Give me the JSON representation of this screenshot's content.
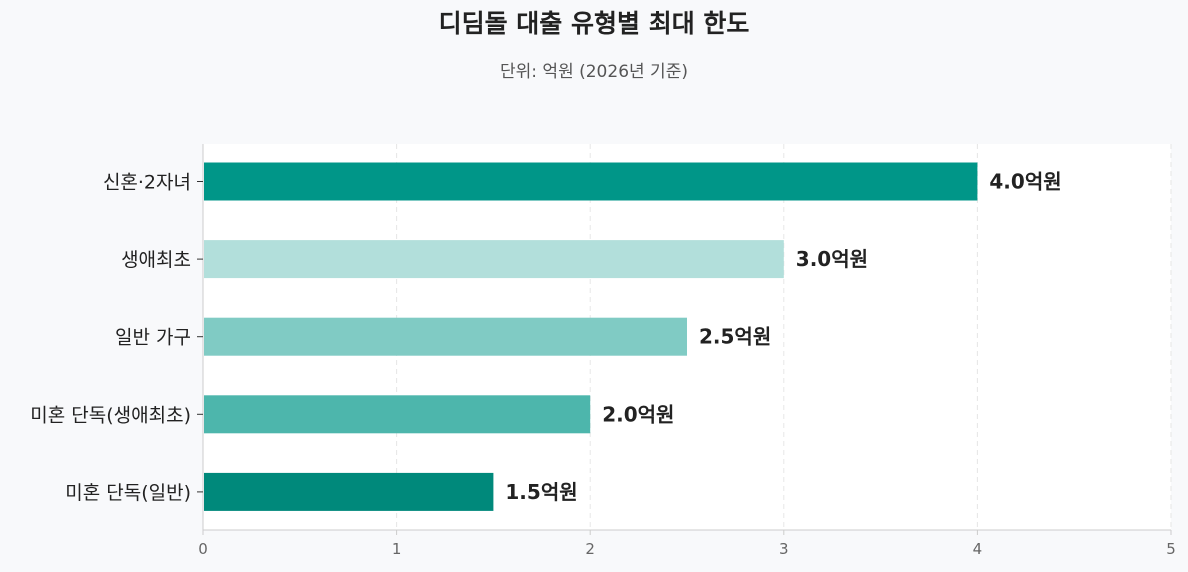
{
  "chart_data": {
    "type": "bar",
    "orientation": "horizontal",
    "title": "디딤돌 대출 유형별 최대 한도",
    "subtitle": "단위: 억원 (2026년 기준)",
    "categories": [
      "신혼·2자녀",
      "생애최초",
      "일반 가구",
      "미혼 단독(생애최초)",
      "미혼 단독(일반)"
    ],
    "values": [
      4.0,
      3.0,
      2.5,
      2.0,
      1.5
    ],
    "value_labels": [
      "4.0억원",
      "3.0억원",
      "2.5억원",
      "2.0억원",
      "1.5억원"
    ],
    "bar_colors": [
      "#009688",
      "#b2dfdb",
      "#80cbc4",
      "#4db6ac",
      "#00897b"
    ],
    "xlim": [
      0,
      5
    ],
    "x_ticks": [
      "0",
      "1",
      "2",
      "3",
      "4",
      "5"
    ],
    "grid": "vertical dashed",
    "legend": "none",
    "xlabel": "",
    "ylabel": ""
  },
  "colors": {
    "page_background": "#f8f9fb",
    "plot_background": "#ffffff",
    "grid": "#e6e6e6",
    "axis": "#cccccc",
    "text": "#222222"
  }
}
